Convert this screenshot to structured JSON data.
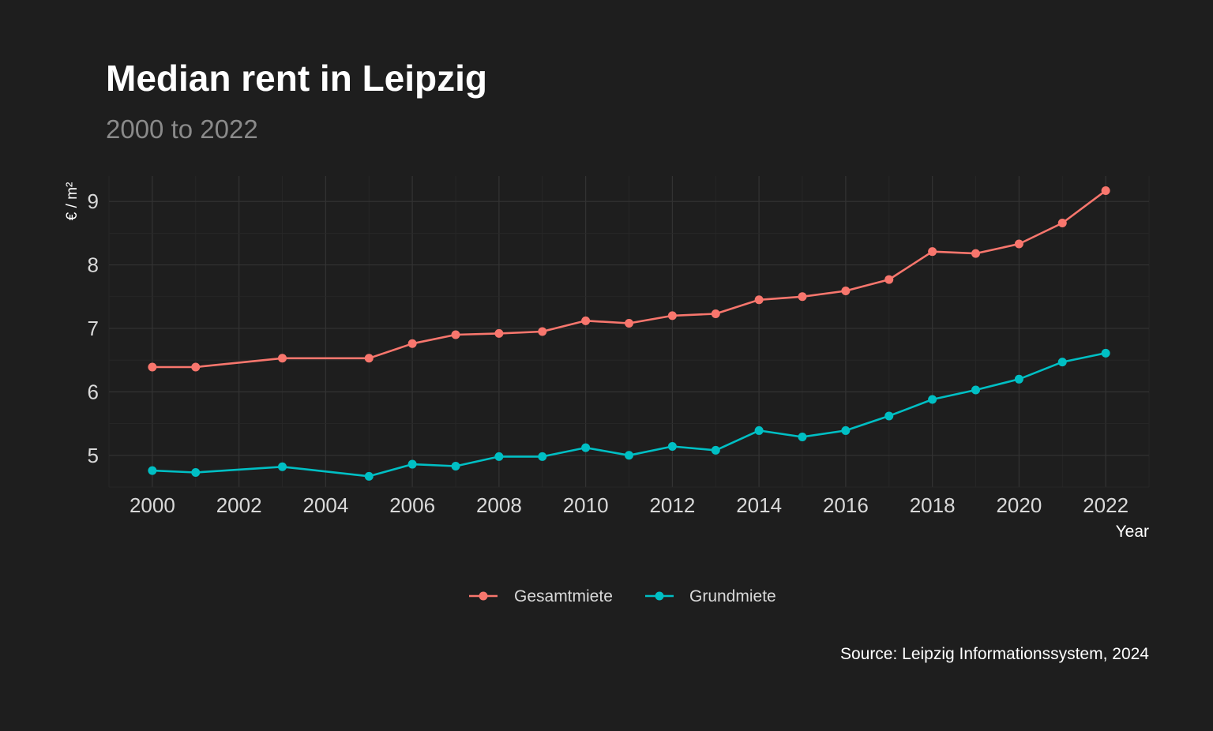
{
  "chart_data": {
    "type": "line",
    "title": "Median rent in Leipzig",
    "subtitle": "2000 to 2022",
    "xlabel": "Year",
    "ylabel": "€ / m²",
    "caption": "Source: Leipzig Informationssystem, 2024",
    "xlim": [
      1999,
      2023
    ],
    "ylim": [
      4.5,
      9.4
    ],
    "x_ticks": [
      2000,
      2002,
      2004,
      2006,
      2008,
      2010,
      2012,
      2014,
      2016,
      2018,
      2020,
      2022
    ],
    "y_ticks": [
      5,
      6,
      7,
      8,
      9
    ],
    "grid": true,
    "legend_position": "bottom",
    "colors": {
      "background": "#1e1e1e",
      "title": "#ffffff",
      "subtitle": "#8a8a8a",
      "axis_text": "#d9d9d9",
      "caption": "#ffffff",
      "grid_major": "#333333",
      "grid_minor": "#282828"
    },
    "series": [
      {
        "name": "Gesamtmiete",
        "color": "#f8766d",
        "points": [
          [
            2000,
            6.39
          ],
          [
            2001,
            6.39
          ],
          [
            2003,
            6.53
          ],
          [
            2005,
            6.53
          ],
          [
            2006,
            6.76
          ],
          [
            2007,
            6.9
          ],
          [
            2008,
            6.92
          ],
          [
            2009,
            6.95
          ],
          [
            2010,
            7.12
          ],
          [
            2011,
            7.08
          ],
          [
            2012,
            7.2
          ],
          [
            2013,
            7.23
          ],
          [
            2014,
            7.45
          ],
          [
            2015,
            7.5
          ],
          [
            2016,
            7.59
          ],
          [
            2017,
            7.77
          ],
          [
            2018,
            8.21
          ],
          [
            2019,
            8.18
          ],
          [
            2020,
            8.33
          ],
          [
            2021,
            8.66
          ],
          [
            2022,
            9.17
          ]
        ]
      },
      {
        "name": "Grundmiete",
        "color": "#00bfc4",
        "points": [
          [
            2000,
            4.76
          ],
          [
            2001,
            4.73
          ],
          [
            2003,
            4.82
          ],
          [
            2005,
            4.67
          ],
          [
            2006,
            4.86
          ],
          [
            2007,
            4.83
          ],
          [
            2008,
            4.98
          ],
          [
            2009,
            4.98
          ],
          [
            2010,
            5.12
          ],
          [
            2011,
            5.0
          ],
          [
            2012,
            5.14
          ],
          [
            2013,
            5.08
          ],
          [
            2014,
            5.39
          ],
          [
            2015,
            5.29
          ],
          [
            2016,
            5.39
          ],
          [
            2017,
            5.62
          ],
          [
            2018,
            5.88
          ],
          [
            2019,
            6.03
          ],
          [
            2020,
            6.2
          ],
          [
            2021,
            6.47
          ],
          [
            2022,
            6.61
          ]
        ]
      }
    ]
  }
}
